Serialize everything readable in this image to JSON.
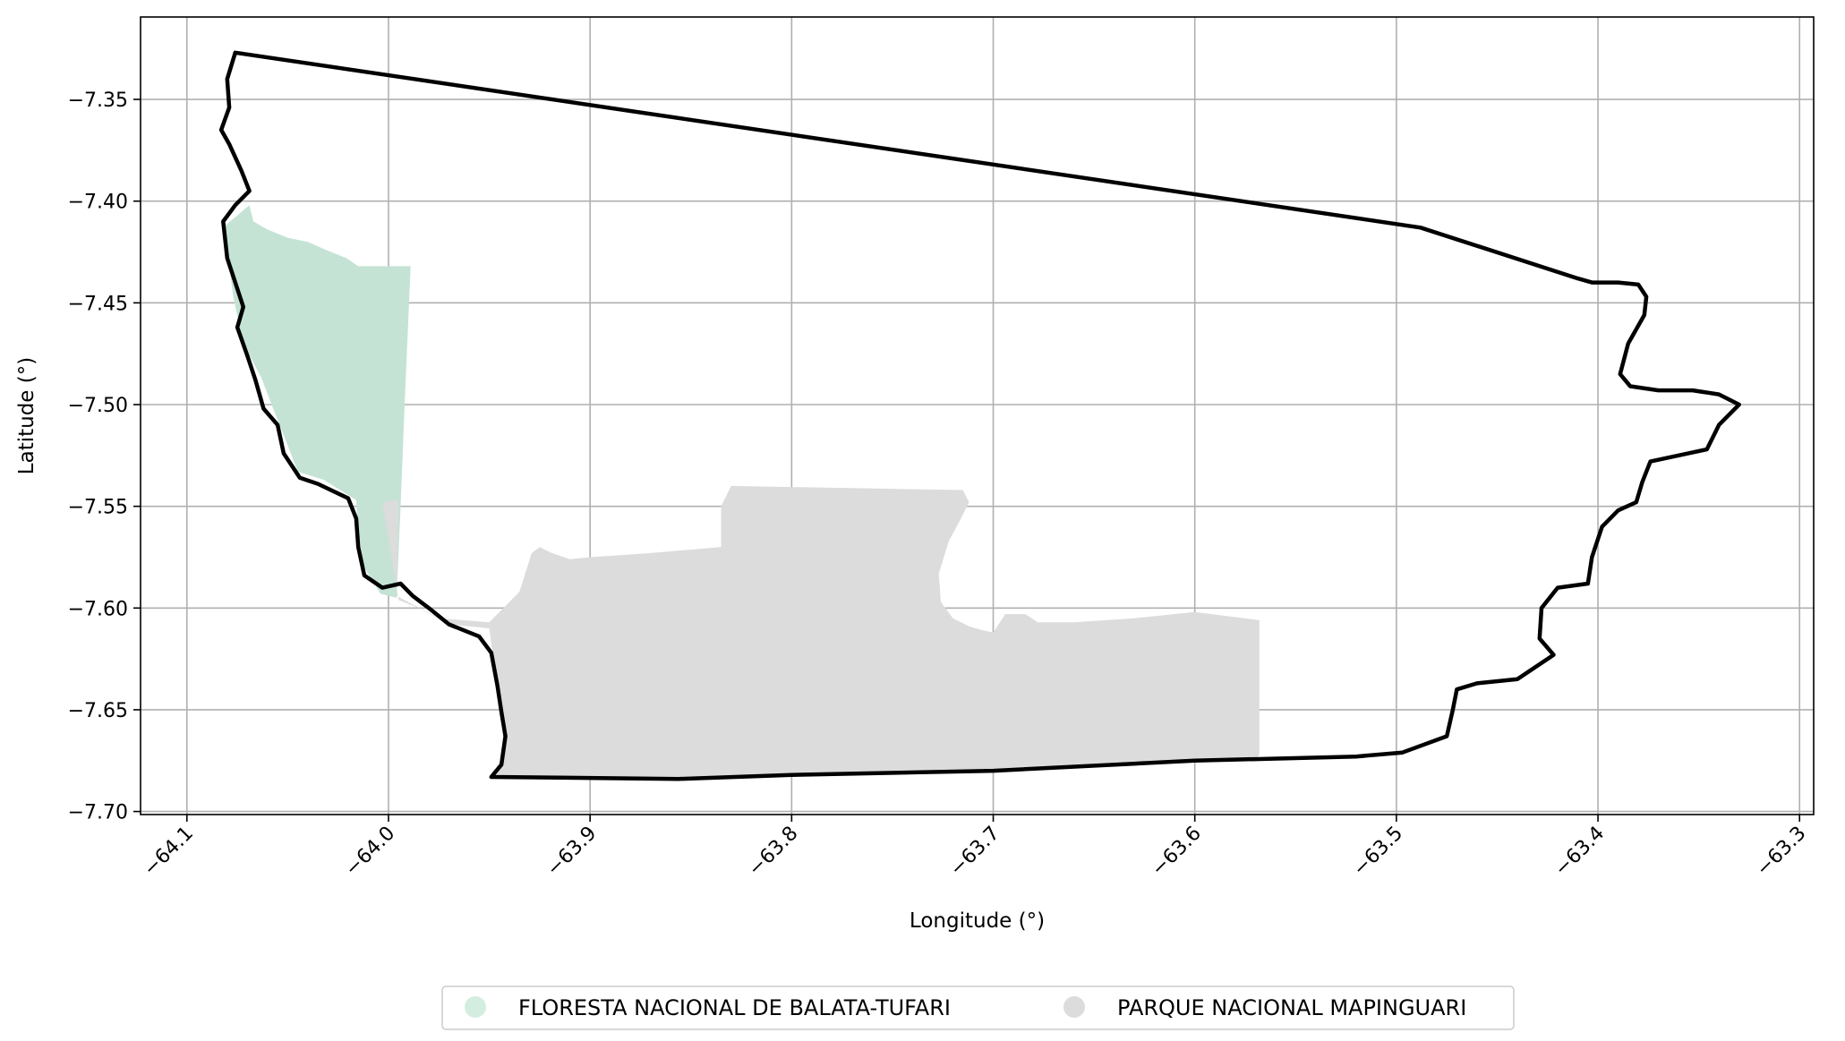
{
  "chart_data": {
    "type": "map",
    "xlabel": "Longitude (°)",
    "ylabel": "Latitude (°)",
    "xlim": [
      -64.123,
      -63.293
    ],
    "ylim": [
      -7.7015,
      -7.3095
    ],
    "grid": true,
    "x_ticks": [
      {
        "value": -64.1,
        "label": "−64.1"
      },
      {
        "value": -64.0,
        "label": "−64.0"
      },
      {
        "value": -63.9,
        "label": "−63.9"
      },
      {
        "value": -63.8,
        "label": "−63.8"
      },
      {
        "value": -63.7,
        "label": "−63.7"
      },
      {
        "value": -63.6,
        "label": "−63.6"
      },
      {
        "value": -63.5,
        "label": "−63.5"
      },
      {
        "value": -63.4,
        "label": "−63.4"
      },
      {
        "value": -63.3,
        "label": "−63.3"
      }
    ],
    "y_ticks": [
      {
        "value": -7.35,
        "label": "−7.35"
      },
      {
        "value": -7.4,
        "label": "−7.40"
      },
      {
        "value": -7.45,
        "label": "−7.45"
      },
      {
        "value": -7.5,
        "label": "−7.50"
      },
      {
        "value": -7.55,
        "label": "−7.55"
      },
      {
        "value": -7.6,
        "label": "−7.60"
      },
      {
        "value": -7.65,
        "label": "−7.65"
      },
      {
        "value": -7.7,
        "label": "−7.70"
      }
    ],
    "legend_placement": "bottom-center",
    "layers": [
      {
        "name": "FLORESTA NACIONAL DE BALATA-TUFARI",
        "color": "#c4e3d5",
        "legend_color": "#d4ede1",
        "polygon": [
          [
            -64.069,
            -7.402
          ],
          [
            -64.067,
            -7.41
          ],
          [
            -64.06,
            -7.414
          ],
          [
            -64.05,
            -7.418
          ],
          [
            -64.04,
            -7.42
          ],
          [
            -64.031,
            -7.424
          ],
          [
            -64.021,
            -7.428
          ],
          [
            -64.015,
            -7.432
          ],
          [
            -63.989,
            -7.432
          ],
          [
            -63.992,
            -7.5
          ],
          [
            -63.994,
            -7.55
          ],
          [
            -63.996,
            -7.595
          ],
          [
            -64.004,
            -7.593
          ],
          [
            -64.012,
            -7.58
          ],
          [
            -64.015,
            -7.563
          ],
          [
            -64.016,
            -7.547
          ],
          [
            -64.032,
            -7.537
          ],
          [
            -64.045,
            -7.533
          ],
          [
            -64.05,
            -7.52
          ],
          [
            -64.058,
            -7.5
          ],
          [
            -64.063,
            -7.487
          ],
          [
            -64.072,
            -7.47
          ],
          [
            -64.077,
            -7.447
          ],
          [
            -64.079,
            -7.432
          ],
          [
            -64.081,
            -7.412
          ]
        ]
      },
      {
        "name": "PARQUE NACIONAL MAPINGUARI",
        "color": "#dcdcdc",
        "legend_color": "#dcdcdc",
        "polygon": [
          [
            -64.003,
            -7.548
          ],
          [
            -63.995,
            -7.547
          ],
          [
            -63.996,
            -7.594
          ],
          [
            -63.975,
            -7.605
          ],
          [
            -63.95,
            -7.607
          ],
          [
            -63.947,
            -7.604
          ],
          [
            -63.941,
            -7.598
          ],
          [
            -63.935,
            -7.592
          ],
          [
            -63.929,
            -7.573
          ],
          [
            -63.925,
            -7.57
          ],
          [
            -63.919,
            -7.573
          ],
          [
            -63.91,
            -7.576
          ],
          [
            -63.9,
            -7.575
          ],
          [
            -63.87,
            -7.573
          ],
          [
            -63.835,
            -7.57
          ],
          [
            -63.835,
            -7.55
          ],
          [
            -63.83,
            -7.54
          ],
          [
            -63.715,
            -7.542
          ],
          [
            -63.712,
            -7.548
          ],
          [
            -63.716,
            -7.556
          ],
          [
            -63.722,
            -7.567
          ],
          [
            -63.727,
            -7.583
          ],
          [
            -63.726,
            -7.597
          ],
          [
            -63.72,
            -7.605
          ],
          [
            -63.712,
            -7.609
          ],
          [
            -63.705,
            -7.611
          ],
          [
            -63.7,
            -7.612
          ],
          [
            -63.694,
            -7.603
          ],
          [
            -63.684,
            -7.603
          ],
          [
            -63.678,
            -7.607
          ],
          [
            -63.66,
            -7.607
          ],
          [
            -63.63,
            -7.605
          ],
          [
            -63.6,
            -7.602
          ],
          [
            -63.568,
            -7.606
          ],
          [
            -63.568,
            -7.672
          ],
          [
            -63.57,
            -7.675
          ],
          [
            -63.6,
            -7.675
          ],
          [
            -63.7,
            -7.68
          ],
          [
            -63.8,
            -7.682
          ],
          [
            -63.856,
            -7.685
          ],
          [
            -63.949,
            -7.683
          ],
          [
            -63.944,
            -7.677
          ],
          [
            -63.942,
            -7.663
          ],
          [
            -63.944,
            -7.651
          ],
          [
            -63.946,
            -7.638
          ],
          [
            -63.948,
            -7.625
          ],
          [
            -63.95,
            -7.61
          ],
          [
            -63.97,
            -7.608
          ],
          [
            -63.985,
            -7.6
          ],
          [
            -63.995,
            -7.596
          ]
        ]
      }
    ],
    "boundary": {
      "color": "#000000",
      "points": [
        [
          -64.076,
          -7.327
        ],
        [
          -63.488,
          -7.413
        ],
        [
          -63.41,
          -7.438
        ],
        [
          -63.403,
          -7.44
        ],
        [
          -63.39,
          -7.44
        ],
        [
          -63.38,
          -7.441
        ],
        [
          -63.376,
          -7.447
        ],
        [
          -63.377,
          -7.456
        ],
        [
          -63.385,
          -7.47
        ],
        [
          -63.389,
          -7.485
        ],
        [
          -63.384,
          -7.491
        ],
        [
          -63.37,
          -7.493
        ],
        [
          -63.353,
          -7.493
        ],
        [
          -63.34,
          -7.495
        ],
        [
          -63.33,
          -7.5
        ],
        [
          -63.34,
          -7.51
        ],
        [
          -63.346,
          -7.522
        ],
        [
          -63.36,
          -7.525
        ],
        [
          -63.374,
          -7.528
        ],
        [
          -63.378,
          -7.538
        ],
        [
          -63.381,
          -7.548
        ],
        [
          -63.39,
          -7.552
        ],
        [
          -63.398,
          -7.56
        ],
        [
          -63.403,
          -7.575
        ],
        [
          -63.405,
          -7.588
        ],
        [
          -63.42,
          -7.59
        ],
        [
          -63.428,
          -7.6
        ],
        [
          -63.429,
          -7.615
        ],
        [
          -63.422,
          -7.623
        ],
        [
          -63.44,
          -7.635
        ],
        [
          -63.46,
          -7.637
        ],
        [
          -63.47,
          -7.64
        ],
        [
          -63.472,
          -7.65
        ],
        [
          -63.475,
          -7.663
        ],
        [
          -63.497,
          -7.671
        ],
        [
          -63.52,
          -7.673
        ],
        [
          -63.6,
          -7.675
        ],
        [
          -63.7,
          -7.68
        ],
        [
          -63.8,
          -7.682
        ],
        [
          -63.856,
          -7.684
        ],
        [
          -63.949,
          -7.683
        ],
        [
          -63.944,
          -7.677
        ],
        [
          -63.942,
          -7.663
        ],
        [
          -63.944,
          -7.651
        ],
        [
          -63.946,
          -7.638
        ],
        [
          -63.949,
          -7.622
        ],
        [
          -63.955,
          -7.614
        ],
        [
          -63.97,
          -7.608
        ],
        [
          -63.98,
          -7.6
        ],
        [
          -63.988,
          -7.594
        ],
        [
          -63.994,
          -7.588
        ],
        [
          -64.003,
          -7.59
        ],
        [
          -64.012,
          -7.584
        ],
        [
          -64.015,
          -7.57
        ],
        [
          -64.016,
          -7.556
        ],
        [
          -64.02,
          -7.546
        ],
        [
          -64.035,
          -7.539
        ],
        [
          -64.044,
          -7.536
        ],
        [
          -64.052,
          -7.524
        ],
        [
          -64.055,
          -7.51
        ],
        [
          -64.062,
          -7.502
        ],
        [
          -64.066,
          -7.488
        ],
        [
          -64.07,
          -7.476
        ],
        [
          -64.075,
          -7.462
        ],
        [
          -64.072,
          -7.452
        ],
        [
          -64.076,
          -7.44
        ],
        [
          -64.08,
          -7.428
        ],
        [
          -64.082,
          -7.41
        ],
        [
          -64.076,
          -7.402
        ],
        [
          -64.069,
          -7.395
        ],
        [
          -64.073,
          -7.385
        ],
        [
          -64.079,
          -7.372
        ],
        [
          -64.083,
          -7.365
        ],
        [
          -64.079,
          -7.354
        ],
        [
          -64.08,
          -7.34
        ],
        [
          -64.076,
          -7.327
        ]
      ]
    }
  }
}
